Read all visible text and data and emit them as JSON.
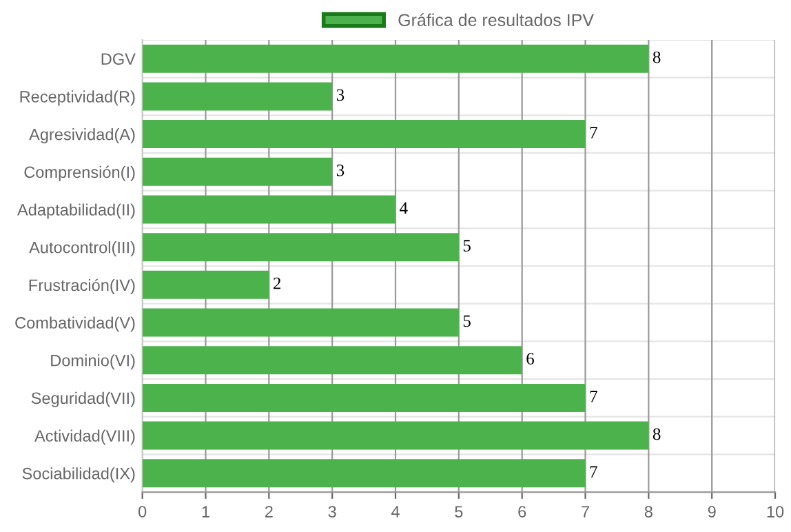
{
  "chart_data": {
    "type": "bar",
    "orientation": "horizontal",
    "categories": [
      "DGV",
      "Receptividad(R)",
      "Agresividad(A)",
      "Comprensión(I)",
      "Adaptabilidad(II)",
      "Autocontrol(III)",
      "Frustración(IV)",
      "Combatividad(V)",
      "Dominio(VI)",
      "Seguridad(VII)",
      "Actividad(VIII)",
      "Sociabilidad(IX)"
    ],
    "series": [
      {
        "name": "Gráfica de resultados IPV",
        "color": "#4cb34c",
        "values": [
          8,
          3,
          7,
          3,
          4,
          5,
          2,
          5,
          6,
          7,
          8,
          7
        ]
      }
    ],
    "xlim": [
      0,
      10
    ],
    "xticks": [
      0,
      1,
      2,
      3,
      4,
      5,
      6,
      7,
      8,
      9,
      10
    ],
    "grid": true,
    "legend": "top",
    "data_labels": true
  }
}
